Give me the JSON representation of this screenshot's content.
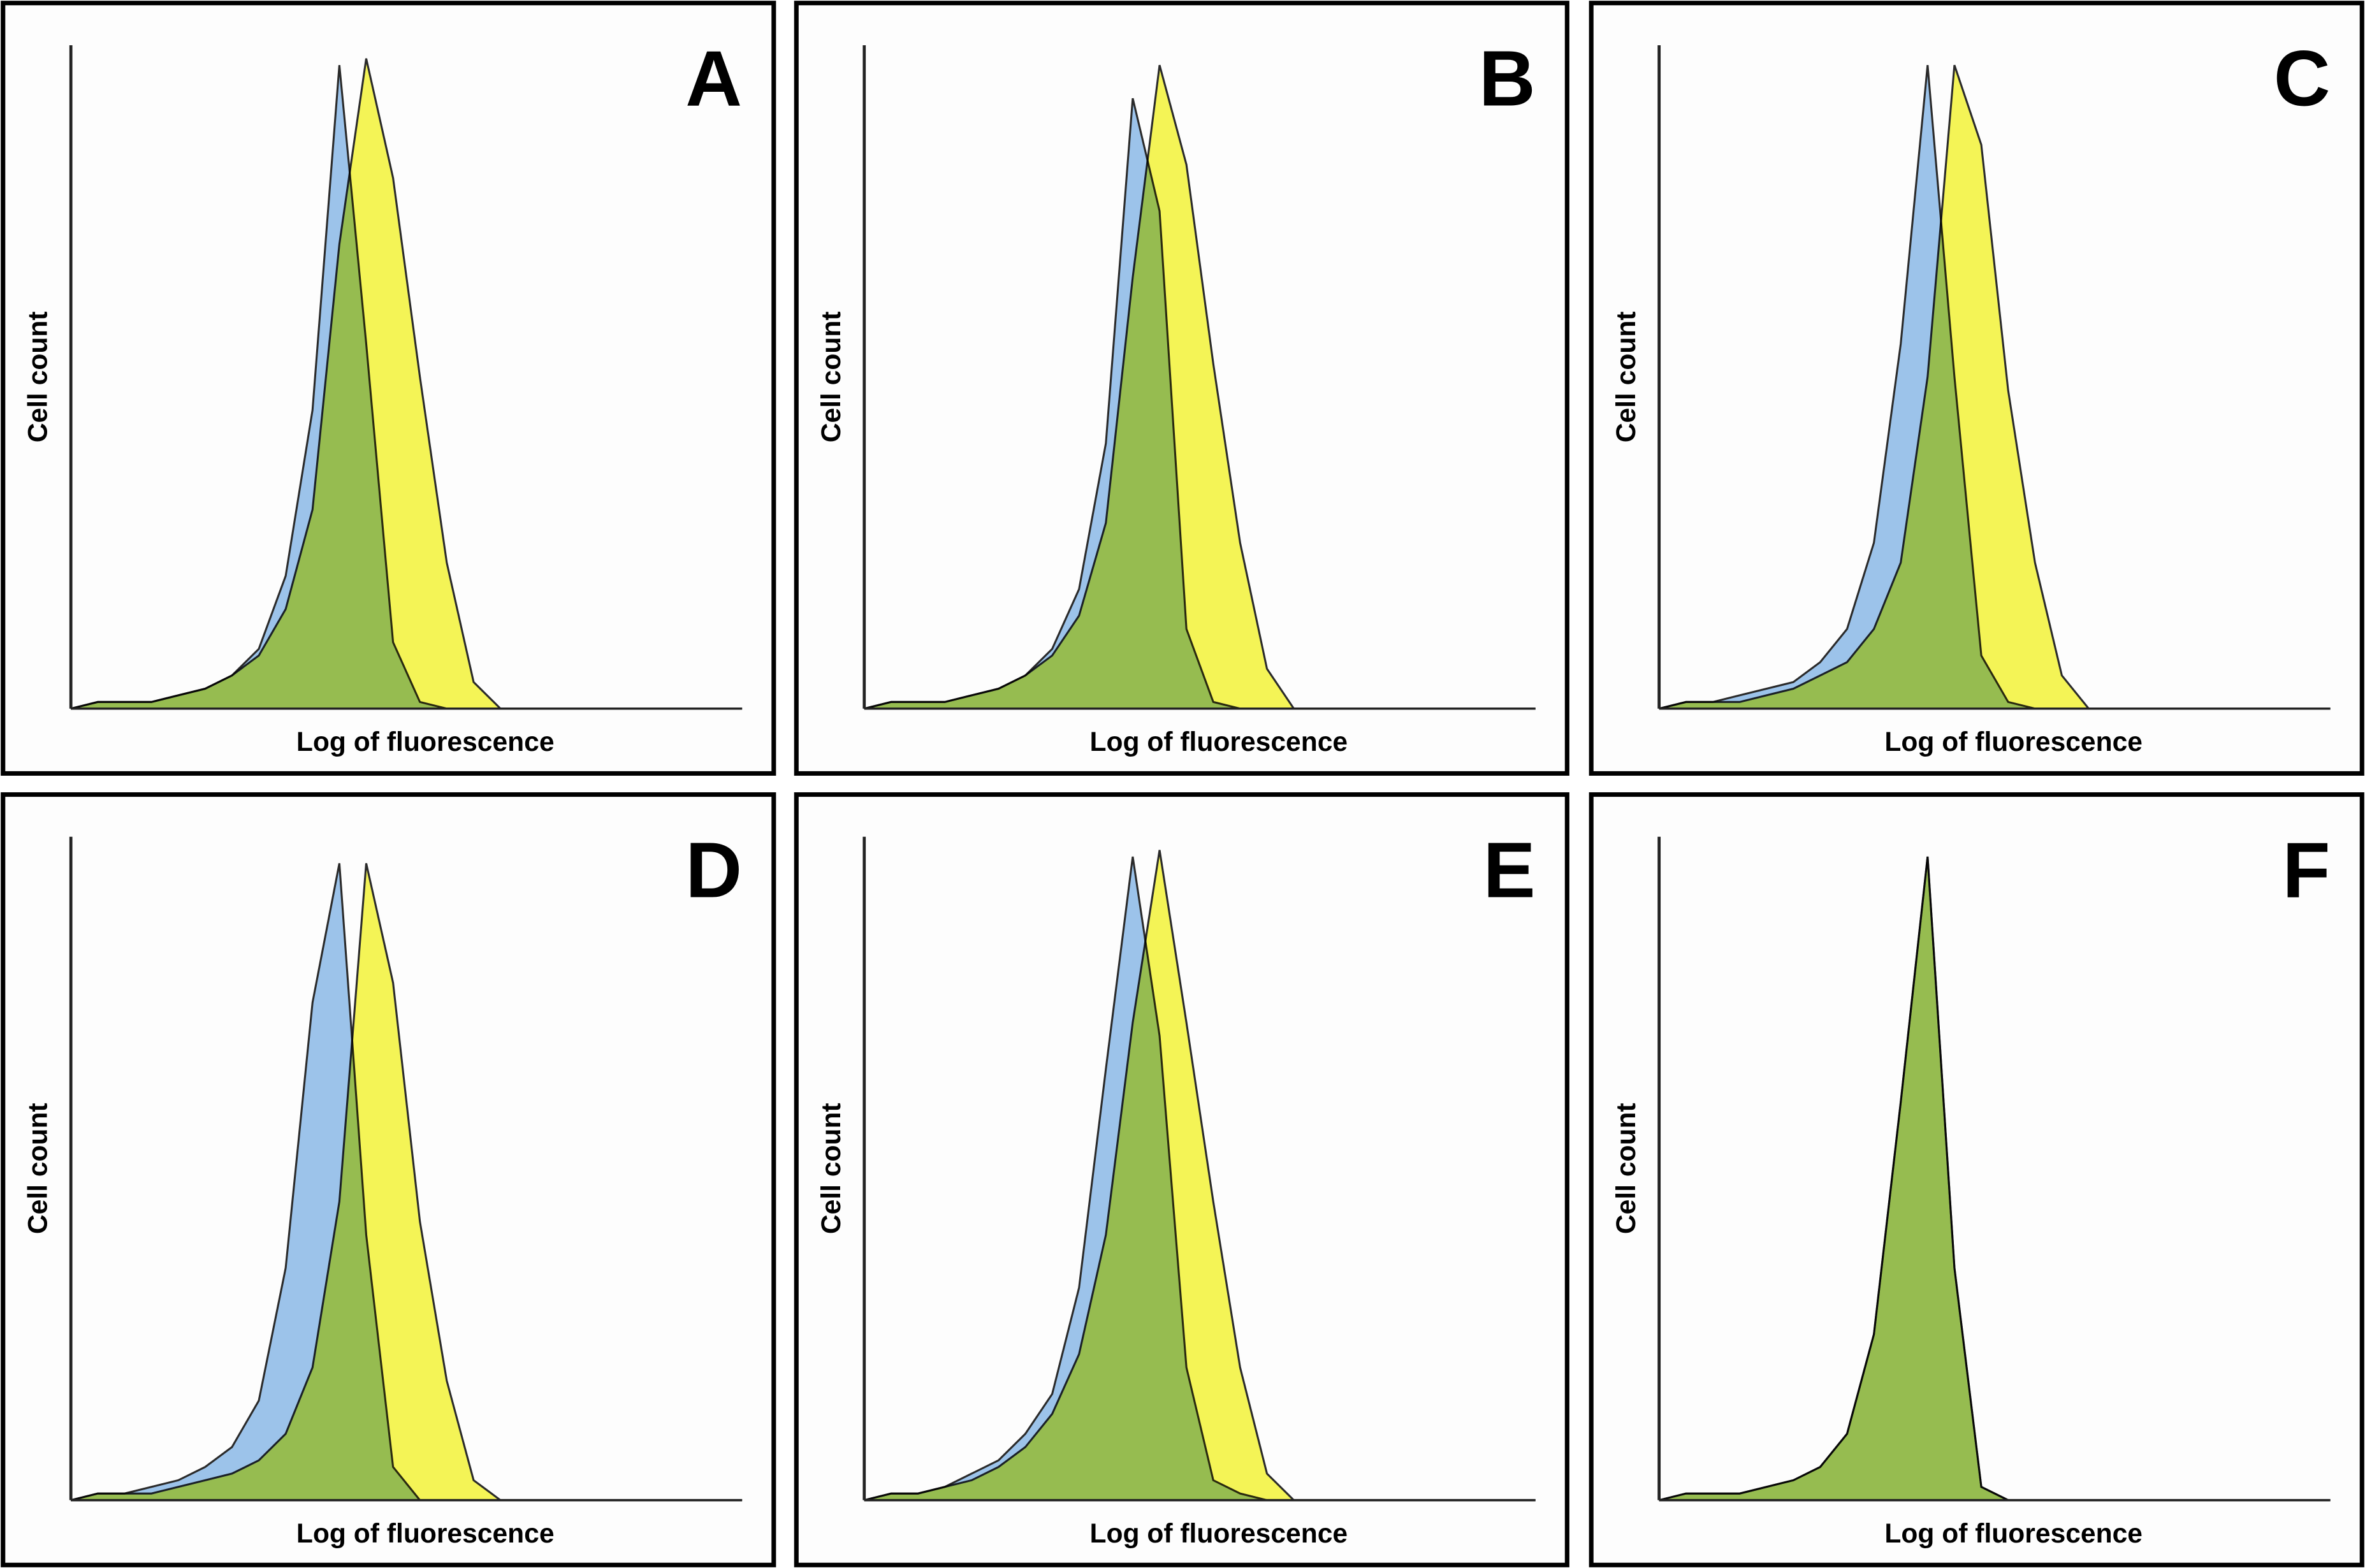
{
  "chart_data": [
    {
      "type": "area",
      "title": "A",
      "x_label": "Log of fluorescence",
      "y_label": "Cell count",
      "x": [
        0,
        4,
        8,
        12,
        16,
        20,
        24,
        28,
        32,
        36,
        40,
        44,
        48,
        52,
        56,
        60,
        64,
        68,
        72,
        76,
        80,
        84,
        88,
        92,
        96,
        100
      ],
      "xlim": [
        0,
        100
      ],
      "ylim": [
        0,
        100
      ],
      "series": [
        {
          "color": "#9cc3ea",
          "values": [
            0,
            1,
            1,
            1,
            2,
            3,
            5,
            9,
            20,
            45,
            97,
            55,
            10,
            1,
            0,
            0,
            0,
            0,
            0,
            0,
            0,
            0,
            0,
            0,
            0,
            0
          ]
        },
        {
          "color": "#f5f53a",
          "values": [
            0,
            1,
            1,
            1,
            2,
            3,
            5,
            8,
            15,
            30,
            70,
            98,
            80,
            50,
            22,
            4,
            0,
            0,
            0,
            0,
            0,
            0,
            0,
            0,
            0,
            0
          ]
        }
      ]
    },
    {
      "type": "area",
      "title": "B",
      "x_label": "Log of fluorescence",
      "y_label": "Cell count",
      "x": [
        0,
        4,
        8,
        12,
        16,
        20,
        24,
        28,
        32,
        36,
        40,
        44,
        48,
        52,
        56,
        60,
        64,
        68,
        72,
        76,
        80,
        84,
        88,
        92,
        96,
        100
      ],
      "xlim": [
        0,
        100
      ],
      "ylim": [
        0,
        100
      ],
      "series": [
        {
          "color": "#9cc3ea",
          "values": [
            0,
            1,
            1,
            1,
            2,
            3,
            5,
            9,
            18,
            40,
            92,
            75,
            12,
            1,
            0,
            0,
            0,
            0,
            0,
            0,
            0,
            0,
            0,
            0,
            0,
            0
          ]
        },
        {
          "color": "#f5f53a",
          "values": [
            0,
            1,
            1,
            1,
            2,
            3,
            5,
            8,
            14,
            28,
            65,
            97,
            82,
            52,
            25,
            6,
            0,
            0,
            0,
            0,
            0,
            0,
            0,
            0,
            0,
            0
          ]
        }
      ]
    },
    {
      "type": "area",
      "title": "C",
      "x_label": "Log of fluorescence",
      "y_label": "Cell count",
      "x": [
        0,
        4,
        8,
        12,
        16,
        20,
        24,
        28,
        32,
        36,
        40,
        44,
        48,
        52,
        56,
        60,
        64,
        68,
        72,
        76,
        80,
        84,
        88,
        92,
        96,
        100
      ],
      "xlim": [
        0,
        100
      ],
      "ylim": [
        0,
        100
      ],
      "series": [
        {
          "color": "#9cc3ea",
          "values": [
            0,
            1,
            1,
            2,
            3,
            4,
            7,
            12,
            25,
            55,
            97,
            50,
            8,
            1,
            0,
            0,
            0,
            0,
            0,
            0,
            0,
            0,
            0,
            0,
            0,
            0
          ]
        },
        {
          "color": "#f5f53a",
          "values": [
            0,
            1,
            1,
            1,
            2,
            3,
            5,
            7,
            12,
            22,
            50,
            97,
            85,
            48,
            22,
            5,
            0,
            0,
            0,
            0,
            0,
            0,
            0,
            0,
            0,
            0
          ]
        }
      ]
    },
    {
      "type": "area",
      "title": "D",
      "x_label": "Log of fluorescence",
      "y_label": "Cell count",
      "x": [
        0,
        4,
        8,
        12,
        16,
        20,
        24,
        28,
        32,
        36,
        40,
        44,
        48,
        52,
        56,
        60,
        64,
        68,
        72,
        76,
        80,
        84,
        88,
        92,
        96,
        100
      ],
      "xlim": [
        0,
        100
      ],
      "ylim": [
        0,
        100
      ],
      "series": [
        {
          "color": "#9cc3ea",
          "values": [
            0,
            1,
            1,
            2,
            3,
            5,
            8,
            15,
            35,
            75,
            96,
            40,
            5,
            0,
            0,
            0,
            0,
            0,
            0,
            0,
            0,
            0,
            0,
            0,
            0,
            0
          ]
        },
        {
          "color": "#f5f53a",
          "values": [
            0,
            1,
            1,
            1,
            2,
            3,
            4,
            6,
            10,
            20,
            45,
            96,
            78,
            42,
            18,
            3,
            0,
            0,
            0,
            0,
            0,
            0,
            0,
            0,
            0,
            0
          ]
        }
      ]
    },
    {
      "type": "area",
      "title": "E",
      "x_label": "Log of fluorescence",
      "y_label": "Cell count",
      "x": [
        0,
        4,
        8,
        12,
        16,
        20,
        24,
        28,
        32,
        36,
        40,
        44,
        48,
        52,
        56,
        60,
        64,
        68,
        72,
        76,
        80,
        84,
        88,
        92,
        96,
        100
      ],
      "xlim": [
        0,
        100
      ],
      "ylim": [
        0,
        100
      ],
      "series": [
        {
          "color": "#9cc3ea",
          "values": [
            0,
            1,
            1,
            2,
            4,
            6,
            10,
            16,
            32,
            65,
            97,
            70,
            20,
            3,
            1,
            0,
            0,
            0,
            0,
            0,
            0,
            0,
            0,
            0,
            0,
            0
          ]
        },
        {
          "color": "#f5f53a",
          "values": [
            0,
            1,
            1,
            2,
            3,
            5,
            8,
            13,
            22,
            40,
            72,
            98,
            72,
            45,
            20,
            4,
            0,
            0,
            0,
            0,
            0,
            0,
            0,
            0,
            0,
            0
          ]
        }
      ]
    },
    {
      "type": "area",
      "title": "F",
      "x_label": "Log of fluorescence",
      "y_label": "Cell count",
      "x": [
        0,
        4,
        8,
        12,
        16,
        20,
        24,
        28,
        32,
        36,
        40,
        44,
        48,
        52,
        56,
        60,
        64,
        68,
        72,
        76,
        80,
        84,
        88,
        92,
        96,
        100
      ],
      "xlim": [
        0,
        100
      ],
      "ylim": [
        0,
        100
      ],
      "series": [
        {
          "color": "#9cc3ea",
          "values": [
            0,
            1,
            1,
            1,
            2,
            3,
            5,
            10,
            25,
            60,
            97,
            35,
            2,
            0,
            0,
            0,
            0,
            0,
            0,
            0,
            0,
            0,
            0,
            0,
            0,
            0
          ]
        },
        {
          "color": "#f5f53a",
          "values": [
            0,
            1,
            1,
            1,
            2,
            3,
            5,
            10,
            25,
            60,
            97,
            35,
            2,
            0,
            0,
            0,
            0,
            0,
            0,
            0,
            0,
            0,
            0,
            0,
            0,
            0
          ]
        }
      ]
    }
  ]
}
